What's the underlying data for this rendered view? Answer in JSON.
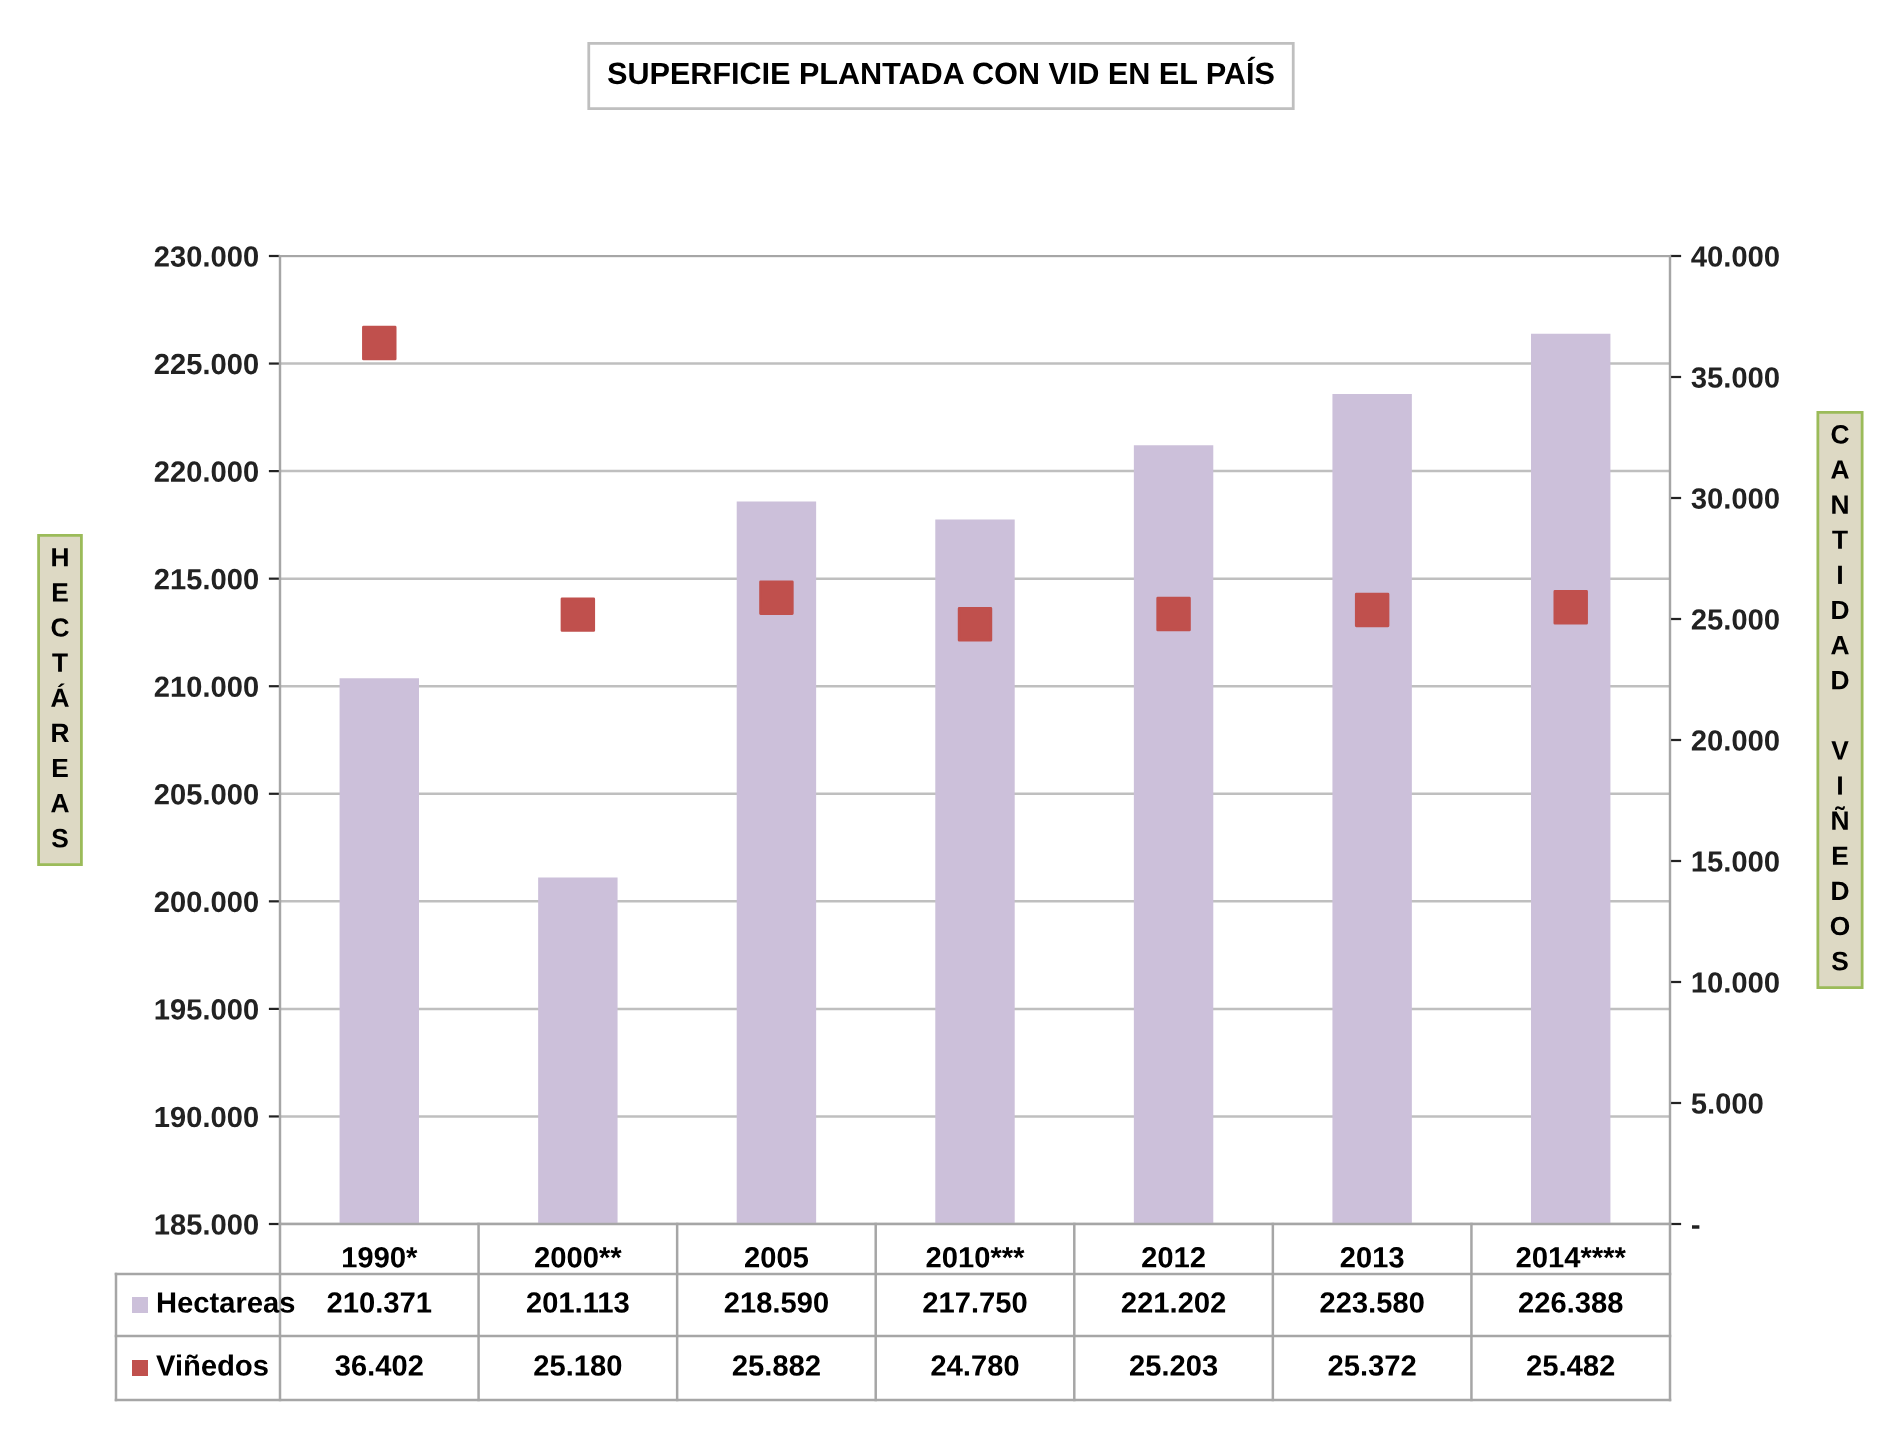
{
  "chart_data": {
    "type": "bar",
    "title": "SUPERFICIE PLANTADA CON VID EN EL PAÍS",
    "ylabel": "HECTÁREAS",
    "y2label": "CANTIDAD VIÑEDOS",
    "categories": [
      "1990*",
      "2000**",
      "2005",
      "2010***",
      "2012",
      "2013",
      "2014****"
    ],
    "series": [
      {
        "name": "Hectareas",
        "color": "#ccc0da",
        "values": [
          210371,
          201113,
          218590,
          217750,
          221202,
          223580,
          226388
        ],
        "value_labels": [
          "210.371",
          "201.113",
          "218.590",
          "217.750",
          "221.202",
          "223.580",
          "226.388"
        ]
      },
      {
        "name": "Viñedos",
        "type": "scatter",
        "axis": "y2",
        "marker": "square",
        "color": "#c0504d",
        "values": [
          36402,
          25180,
          25882,
          24780,
          25203,
          25372,
          25482
        ],
        "value_labels": [
          "36.402",
          "25.180",
          "25.882",
          "24.780",
          "25.203",
          "25.372",
          "25.482"
        ]
      }
    ],
    "ylim": [
      185000,
      230000
    ],
    "yticks": [
      {
        "value": 185000,
        "label": "185.000"
      },
      {
        "value": 190000,
        "label": "190.000"
      },
      {
        "value": 195000,
        "label": "195.000"
      },
      {
        "value": 200000,
        "label": "200.000"
      },
      {
        "value": 205000,
        "label": "205.000"
      },
      {
        "value": 210000,
        "label": "210.000"
      },
      {
        "value": 215000,
        "label": "215.000"
      },
      {
        "value": 220000,
        "label": "220.000"
      },
      {
        "value": 225000,
        "label": "225.000"
      },
      {
        "value": 230000,
        "label": "230.000"
      }
    ],
    "y2lim": [
      0,
      40000
    ],
    "y2ticks": [
      {
        "value": 0,
        "label": "-"
      },
      {
        "value": 5000,
        "label": "5.000"
      },
      {
        "value": 10000,
        "label": "10.000"
      },
      {
        "value": 15000,
        "label": "15.000"
      },
      {
        "value": 20000,
        "label": "20.000"
      },
      {
        "value": 25000,
        "label": "25.000"
      },
      {
        "value": 30000,
        "label": "30.000"
      },
      {
        "value": 35000,
        "label": "35.000"
      },
      {
        "value": 40000,
        "label": "40.000"
      }
    ],
    "grid": "y",
    "legend": "bottom"
  }
}
